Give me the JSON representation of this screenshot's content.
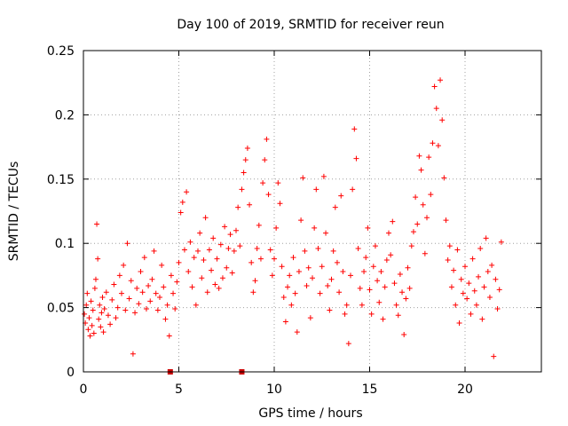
{
  "chart_data": {
    "type": "scatter",
    "title": "Day 100 of 2019, SRMTID for receiver reun",
    "xlabel": "GPS time / hours",
    "ylabel": "SRMTID / TECUs",
    "xlim": [
      0,
      24
    ],
    "ylim": [
      0,
      0.25
    ],
    "xticks": [
      0,
      5,
      10,
      15,
      20
    ],
    "xtick_labels": [
      "0",
      "5",
      "10",
      "15",
      "20"
    ],
    "yticks": [
      0,
      0.05,
      0.1,
      0.15,
      0.2,
      0.25
    ],
    "ytick_labels": [
      "0",
      "0.05",
      "0.1",
      "0.15",
      "0.2",
      "0.25"
    ],
    "grid": true,
    "marker": "plus",
    "color": "#ff0000",
    "series": [
      {
        "name": "SRMTID",
        "points": [
          [
            0.05,
            0.045
          ],
          [
            0.1,
            0.038
          ],
          [
            0.15,
            0.052
          ],
          [
            0.2,
            0.061
          ],
          [
            0.25,
            0.033
          ],
          [
            0.3,
            0.042
          ],
          [
            0.35,
            0.028
          ],
          [
            0.4,
            0.055
          ],
          [
            0.45,
            0.036
          ],
          [
            0.5,
            0.048
          ],
          [
            0.55,
            0.03
          ],
          [
            0.6,
            0.065
          ],
          [
            0.65,
            0.072
          ],
          [
            0.7,
            0.115
          ],
          [
            0.75,
            0.088
          ],
          [
            0.8,
            0.041
          ],
          [
            0.85,
            0.052
          ],
          [
            0.9,
            0.035
          ],
          [
            0.95,
            0.046
          ],
          [
            1.0,
            0.058
          ],
          [
            1.05,
            0.031
          ],
          [
            1.1,
            0.049
          ],
          [
            1.2,
            0.062
          ],
          [
            1.3,
            0.044
          ],
          [
            1.4,
            0.037
          ],
          [
            1.5,
            0.056
          ],
          [
            1.6,
            0.068
          ],
          [
            1.7,
            0.042
          ],
          [
            1.8,
            0.05
          ],
          [
            1.9,
            0.075
          ],
          [
            2.0,
            0.061
          ],
          [
            2.1,
            0.083
          ],
          [
            2.2,
            0.048
          ],
          [
            2.3,
            0.1
          ],
          [
            2.4,
            0.057
          ],
          [
            2.5,
            0.071
          ],
          [
            2.6,
            0.014
          ],
          [
            2.7,
            0.046
          ],
          [
            2.8,
            0.065
          ],
          [
            2.9,
            0.053
          ],
          [
            3.0,
            0.078
          ],
          [
            3.1,
            0.062
          ],
          [
            3.2,
            0.089
          ],
          [
            3.3,
            0.049
          ],
          [
            3.4,
            0.067
          ],
          [
            3.5,
            0.055
          ],
          [
            3.6,
            0.072
          ],
          [
            3.7,
            0.094
          ],
          [
            3.8,
            0.061
          ],
          [
            3.9,
            0.048
          ],
          [
            4.0,
            0.058
          ],
          [
            4.1,
            0.083
          ],
          [
            4.2,
            0.066
          ],
          [
            4.3,
            0.041
          ],
          [
            4.4,
            0.052
          ],
          [
            4.5,
            0.028
          ],
          [
            4.6,
            0.075
          ],
          [
            4.7,
            0.061
          ],
          [
            4.8,
            0.049
          ],
          [
            4.9,
            0.07
          ],
          [
            5.0,
            0.085
          ],
          [
            5.1,
            0.124
          ],
          [
            5.2,
            0.132
          ],
          [
            5.3,
            0.095
          ],
          [
            5.4,
            0.14
          ],
          [
            5.5,
            0.078
          ],
          [
            5.6,
            0.101
          ],
          [
            5.7,
            0.066
          ],
          [
            5.8,
            0.089
          ],
          [
            5.9,
            0.052
          ],
          [
            6.0,
            0.094
          ],
          [
            6.1,
            0.108
          ],
          [
            6.2,
            0.073
          ],
          [
            6.3,
            0.087
          ],
          [
            6.4,
            0.12
          ],
          [
            6.5,
            0.062
          ],
          [
            6.6,
            0.095
          ],
          [
            6.7,
            0.079
          ],
          [
            6.8,
            0.104
          ],
          [
            6.9,
            0.068
          ],
          [
            7.0,
            0.088
          ],
          [
            7.1,
            0.065
          ],
          [
            7.2,
            0.099
          ],
          [
            7.3,
            0.073
          ],
          [
            7.4,
            0.113
          ],
          [
            7.5,
            0.081
          ],
          [
            7.6,
            0.096
          ],
          [
            7.7,
            0.107
          ],
          [
            7.8,
            0.077
          ],
          [
            7.9,
            0.094
          ],
          [
            8.0,
            0.11
          ],
          [
            8.1,
            0.128
          ],
          [
            8.2,
            0.098
          ],
          [
            8.3,
            0.142
          ],
          [
            8.4,
            0.155
          ],
          [
            8.5,
            0.165
          ],
          [
            8.6,
            0.174
          ],
          [
            8.7,
            0.13
          ],
          [
            8.8,
            0.085
          ],
          [
            8.9,
            0.062
          ],
          [
            9.0,
            0.071
          ],
          [
            9.1,
            0.096
          ],
          [
            9.2,
            0.114
          ],
          [
            9.3,
            0.088
          ],
          [
            9.4,
            0.147
          ],
          [
            9.5,
            0.165
          ],
          [
            9.6,
            0.181
          ],
          [
            9.7,
            0.138
          ],
          [
            9.8,
            0.095
          ],
          [
            9.9,
            0.075
          ],
          [
            10.0,
            0.088
          ],
          [
            10.1,
            0.112
          ],
          [
            10.2,
            0.147
          ],
          [
            10.3,
            0.131
          ],
          [
            10.4,
            0.082
          ],
          [
            10.5,
            0.058
          ],
          [
            10.6,
            0.039
          ],
          [
            10.7,
            0.066
          ],
          [
            10.8,
            0.075
          ],
          [
            10.9,
            0.052
          ],
          [
            11.0,
            0.089
          ],
          [
            11.1,
            0.061
          ],
          [
            11.2,
            0.031
          ],
          [
            11.3,
            0.078
          ],
          [
            11.4,
            0.118
          ],
          [
            11.5,
            0.151
          ],
          [
            11.6,
            0.094
          ],
          [
            11.7,
            0.067
          ],
          [
            11.8,
            0.081
          ],
          [
            11.9,
            0.042
          ],
          [
            12.0,
            0.073
          ],
          [
            12.1,
            0.112
          ],
          [
            12.2,
            0.142
          ],
          [
            12.3,
            0.096
          ],
          [
            12.4,
            0.061
          ],
          [
            12.5,
            0.082
          ],
          [
            12.6,
            0.152
          ],
          [
            12.7,
            0.108
          ],
          [
            12.8,
            0.067
          ],
          [
            12.9,
            0.048
          ],
          [
            13.0,
            0.072
          ],
          [
            13.1,
            0.094
          ],
          [
            13.2,
            0.128
          ],
          [
            13.3,
            0.085
          ],
          [
            13.4,
            0.062
          ],
          [
            13.5,
            0.137
          ],
          [
            13.6,
            0.078
          ],
          [
            13.7,
            0.045
          ],
          [
            13.8,
            0.052
          ],
          [
            13.9,
            0.022
          ],
          [
            14.0,
            0.075
          ],
          [
            14.1,
            0.142
          ],
          [
            14.2,
            0.189
          ],
          [
            14.3,
            0.166
          ],
          [
            14.4,
            0.096
          ],
          [
            14.5,
            0.065
          ],
          [
            14.6,
            0.052
          ],
          [
            14.7,
            0.078
          ],
          [
            14.8,
            0.089
          ],
          [
            14.9,
            0.112
          ],
          [
            15.0,
            0.064
          ],
          [
            15.1,
            0.045
          ],
          [
            15.2,
            0.082
          ],
          [
            15.3,
            0.098
          ],
          [
            15.4,
            0.071
          ],
          [
            15.5,
            0.054
          ],
          [
            15.6,
            0.078
          ],
          [
            15.7,
            0.041
          ],
          [
            15.8,
            0.066
          ],
          [
            15.9,
            0.087
          ],
          [
            16.0,
            0.108
          ],
          [
            16.1,
            0.091
          ],
          [
            16.2,
            0.117
          ],
          [
            16.3,
            0.069
          ],
          [
            16.4,
            0.052
          ],
          [
            16.5,
            0.044
          ],
          [
            16.6,
            0.076
          ],
          [
            16.7,
            0.062
          ],
          [
            16.8,
            0.029
          ],
          [
            16.9,
            0.057
          ],
          [
            17.0,
            0.081
          ],
          [
            17.1,
            0.065
          ],
          [
            17.2,
            0.098
          ],
          [
            17.3,
            0.109
          ],
          [
            17.4,
            0.136
          ],
          [
            17.5,
            0.115
          ],
          [
            17.6,
            0.168
          ],
          [
            17.7,
            0.157
          ],
          [
            17.8,
            0.13
          ],
          [
            17.9,
            0.092
          ],
          [
            18.0,
            0.12
          ],
          [
            18.1,
            0.167
          ],
          [
            18.2,
            0.138
          ],
          [
            18.3,
            0.178
          ],
          [
            18.4,
            0.222
          ],
          [
            18.5,
            0.205
          ],
          [
            18.6,
            0.176
          ],
          [
            18.7,
            0.227
          ],
          [
            18.8,
            0.196
          ],
          [
            18.9,
            0.151
          ],
          [
            19.0,
            0.118
          ],
          [
            19.1,
            0.087
          ],
          [
            19.2,
            0.098
          ],
          [
            19.3,
            0.066
          ],
          [
            19.4,
            0.079
          ],
          [
            19.5,
            0.052
          ],
          [
            19.6,
            0.095
          ],
          [
            19.7,
            0.038
          ],
          [
            19.8,
            0.072
          ],
          [
            19.9,
            0.061
          ],
          [
            20.0,
            0.082
          ],
          [
            20.1,
            0.057
          ],
          [
            20.2,
            0.069
          ],
          [
            20.3,
            0.045
          ],
          [
            20.4,
            0.088
          ],
          [
            20.5,
            0.063
          ],
          [
            20.6,
            0.052
          ],
          [
            20.7,
            0.074
          ],
          [
            20.8,
            0.096
          ],
          [
            20.9,
            0.041
          ],
          [
            21.0,
            0.066
          ],
          [
            21.1,
            0.104
          ],
          [
            21.2,
            0.078
          ],
          [
            21.3,
            0.058
          ],
          [
            21.4,
            0.083
          ],
          [
            21.5,
            0.012
          ],
          [
            21.6,
            0.072
          ],
          [
            21.7,
            0.049
          ],
          [
            21.8,
            0.064
          ],
          [
            21.9,
            0.101
          ]
        ]
      }
    ],
    "axis_markers": [
      {
        "x": 4.55,
        "y": 0,
        "color": "#cc0000"
      },
      {
        "x": 8.3,
        "y": 0,
        "color": "#cc0000"
      }
    ]
  }
}
